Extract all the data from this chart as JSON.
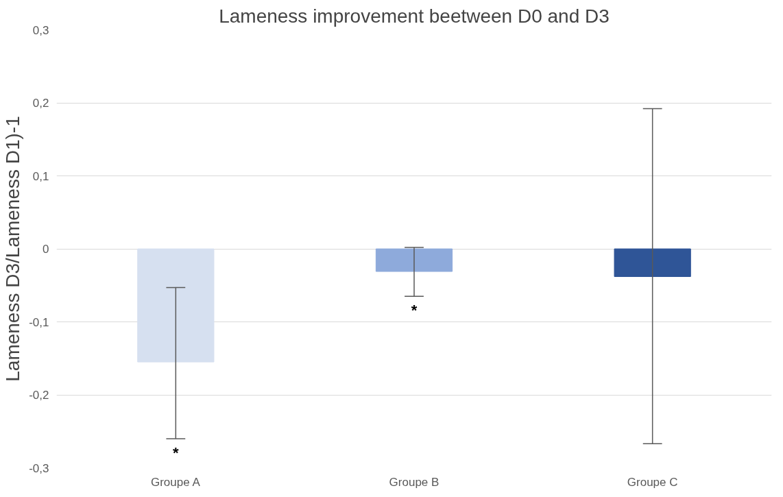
{
  "chart_data": {
    "type": "bar",
    "title": "Lameness improvement beetween D0 and D3",
    "ylabel": "Lameness D3/Lameness D1)-1",
    "categories": [
      "Groupe A",
      "Groupe B",
      "Groupe C"
    ],
    "values": [
      -0.155,
      -0.031,
      -0.038
    ],
    "colors": [
      "#d6e0f0",
      "#8eaadb",
      "#2f5597"
    ],
    "errors": [
      [
        -0.26,
        -0.053
      ],
      [
        -0.065,
        0.002
      ],
      [
        -0.267,
        0.192
      ]
    ],
    "ylim": [
      -0.3,
      0.3
    ],
    "yticks": [
      {
        "value": -0.3,
        "label": "-0,3"
      },
      {
        "value": -0.2,
        "label": "-0,2"
      },
      {
        "value": -0.1,
        "label": "-0,1"
      },
      0,
      {
        "value": 0.1,
        "label": "0,1"
      },
      {
        "value": 0.2,
        "label": "0,2"
      },
      {
        "value": 0.3,
        "label": "0,3"
      }
    ],
    "grid": "y",
    "annotations": [
      "*",
      "*"
    ]
  }
}
